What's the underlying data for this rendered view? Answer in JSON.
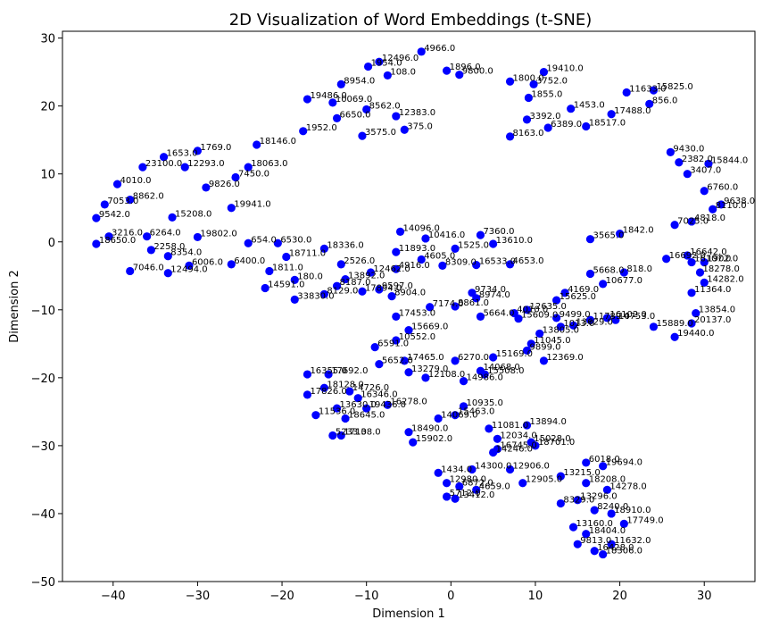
{
  "chart_data": {
    "type": "scatter",
    "title": "2D Visualization of Word Embeddings (t-SNE)",
    "xlabel": "Dimension 1",
    "ylabel": "Dimension 2",
    "xlim": [
      -46,
      36
    ],
    "ylim": [
      -50,
      31
    ],
    "xticks": [
      -40,
      -30,
      -20,
      -10,
      0,
      10,
      20,
      30
    ],
    "yticks": [
      -50,
      -40,
      -30,
      -20,
      -10,
      0,
      10,
      20,
      30
    ],
    "xtick_labels": [
      "−40",
      "−30",
      "−20",
      "−10",
      "0",
      "10",
      "20",
      "30"
    ],
    "ytick_labels": [
      "−50",
      "−40",
      "−30",
      "−20",
      "−10",
      "0",
      "10",
      "20",
      "30"
    ],
    "grid": false,
    "marker_color": "#0000ff",
    "points": [
      {
        "x": -3.5,
        "y": 28.0,
        "label": "4966.0"
      },
      {
        "x": -8.5,
        "y": 26.5,
        "label": "12496.0"
      },
      {
        "x": -9.8,
        "y": 25.8,
        "label": "1954.0"
      },
      {
        "x": -7.5,
        "y": 24.5,
        "label": "108.0"
      },
      {
        "x": -0.5,
        "y": 25.2,
        "label": "1896.0"
      },
      {
        "x": 1.0,
        "y": 24.6,
        "label": "9800.0"
      },
      {
        "x": 11.0,
        "y": 25.0,
        "label": "19410.0"
      },
      {
        "x": 9.8,
        "y": 23.2,
        "label": "3752.0"
      },
      {
        "x": 7.0,
        "y": 23.6,
        "label": "1800.0"
      },
      {
        "x": 9.2,
        "y": 21.2,
        "label": "1855.0"
      },
      {
        "x": 20.8,
        "y": 22.0,
        "label": "11633.0"
      },
      {
        "x": 24.0,
        "y": 22.3,
        "label": "15825.0"
      },
      {
        "x": 23.5,
        "y": 20.3,
        "label": "856.0"
      },
      {
        "x": 14.2,
        "y": 19.6,
        "label": "1453.0"
      },
      {
        "x": 19.0,
        "y": 18.8,
        "label": "17488.0"
      },
      {
        "x": 9.0,
        "y": 18.0,
        "label": "3392.0"
      },
      {
        "x": 11.5,
        "y": 16.8,
        "label": "6389.0"
      },
      {
        "x": 7.0,
        "y": 15.5,
        "label": "8163.0"
      },
      {
        "x": 16.0,
        "y": 17.0,
        "label": "18517.0"
      },
      {
        "x": 26.0,
        "y": 13.2,
        "label": "9430.0"
      },
      {
        "x": 27.0,
        "y": 11.7,
        "label": "2382.0"
      },
      {
        "x": 30.5,
        "y": 11.5,
        "label": "15844.0"
      },
      {
        "x": 28.0,
        "y": 10.0,
        "label": "3407.0"
      },
      {
        "x": 30.0,
        "y": 7.5,
        "label": "6760.0"
      },
      {
        "x": 32.0,
        "y": 5.5,
        "label": "9638.0"
      },
      {
        "x": 31.0,
        "y": 4.8,
        "label": "8110.0"
      },
      {
        "x": 28.5,
        "y": 3.0,
        "label": "4818.0"
      },
      {
        "x": 26.5,
        "y": 2.5,
        "label": "7025.0"
      },
      {
        "x": 20.0,
        "y": 1.2,
        "label": "1842.0"
      },
      {
        "x": 16.5,
        "y": 0.4,
        "label": "3565.0"
      },
      {
        "x": -17.0,
        "y": 21.0,
        "label": "19486.0"
      },
      {
        "x": -13.0,
        "y": 23.2,
        "label": "8954.0"
      },
      {
        "x": -14.0,
        "y": 20.5,
        "label": "10069.0"
      },
      {
        "x": -10.0,
        "y": 19.5,
        "label": "8562.0"
      },
      {
        "x": -13.5,
        "y": 18.2,
        "label": "6650.0"
      },
      {
        "x": -6.5,
        "y": 18.5,
        "label": "12383.0"
      },
      {
        "x": -5.5,
        "y": 16.5,
        "label": "375.0"
      },
      {
        "x": -10.5,
        "y": 15.6,
        "label": "3575.0"
      },
      {
        "x": -17.5,
        "y": 16.3,
        "label": "1952.0"
      },
      {
        "x": -23.0,
        "y": 14.3,
        "label": "18146.0"
      },
      {
        "x": -24.0,
        "y": 11.0,
        "label": "18063.0"
      },
      {
        "x": -30.0,
        "y": 13.4,
        "label": "1769.0"
      },
      {
        "x": -34.0,
        "y": 12.5,
        "label": "1653.0"
      },
      {
        "x": -36.5,
        "y": 11.0,
        "label": "23100.0"
      },
      {
        "x": -31.5,
        "y": 11.0,
        "label": "12293.0"
      },
      {
        "x": -25.5,
        "y": 9.5,
        "label": "7450.0"
      },
      {
        "x": -29.0,
        "y": 8.0,
        "label": "9826.0"
      },
      {
        "x": -39.5,
        "y": 8.5,
        "label": "4010.0"
      },
      {
        "x": -41.0,
        "y": 5.5,
        "label": "7053.0"
      },
      {
        "x": -38.0,
        "y": 6.2,
        "label": "8862.0"
      },
      {
        "x": -26.0,
        "y": 5.0,
        "label": "19941.0"
      },
      {
        "x": -33.0,
        "y": 3.6,
        "label": "15208.0"
      },
      {
        "x": -42.0,
        "y": 3.5,
        "label": "9542.0"
      },
      {
        "x": -42.0,
        "y": -0.3,
        "label": "18650.0"
      },
      {
        "x": -40.5,
        "y": 0.8,
        "label": "3216.0"
      },
      {
        "x": -36.0,
        "y": 0.8,
        "label": "6264.0"
      },
      {
        "x": -30.0,
        "y": 0.7,
        "label": "19802.0"
      },
      {
        "x": -35.5,
        "y": -1.2,
        "label": "2258.0"
      },
      {
        "x": -33.5,
        "y": -2.1,
        "label": "8354.0"
      },
      {
        "x": -31.0,
        "y": -3.5,
        "label": "6006.0"
      },
      {
        "x": -38.0,
        "y": -4.3,
        "label": "7046.0"
      },
      {
        "x": -33.5,
        "y": -4.6,
        "label": "12494.0"
      },
      {
        "x": -24.0,
        "y": -0.2,
        "label": "654.0"
      },
      {
        "x": -20.5,
        "y": -0.2,
        "label": "6530.0"
      },
      {
        "x": -26.0,
        "y": -3.3,
        "label": "6400.0"
      },
      {
        "x": -21.5,
        "y": -4.3,
        "label": "1811.0"
      },
      {
        "x": -19.5,
        "y": -2.2,
        "label": "18711.0"
      },
      {
        "x": -15.0,
        "y": -1.0,
        "label": "18336.0"
      },
      {
        "x": -13.0,
        "y": -3.3,
        "label": "2526.0"
      },
      {
        "x": -12.5,
        "y": -5.5,
        "label": "13892.0"
      },
      {
        "x": -18.5,
        "y": -5.6,
        "label": "180.0"
      },
      {
        "x": -13.5,
        "y": -6.5,
        "label": "8187.0"
      },
      {
        "x": -22.0,
        "y": -6.8,
        "label": "14591.0"
      },
      {
        "x": -18.5,
        "y": -8.5,
        "label": "33830.0"
      },
      {
        "x": -15.0,
        "y": -7.7,
        "label": "8129.0"
      },
      {
        "x": -10.5,
        "y": -7.3,
        "label": "17894.0"
      },
      {
        "x": -8.5,
        "y": -7.0,
        "label": "9597.0"
      },
      {
        "x": -7.0,
        "y": -8.0,
        "label": "8904.0"
      },
      {
        "x": -9.5,
        "y": -4.5,
        "label": "12462.0"
      },
      {
        "x": -6.5,
        "y": -4.0,
        "label": "4916.0"
      },
      {
        "x": -6.5,
        "y": -1.5,
        "label": "11893.0"
      },
      {
        "x": -3.5,
        "y": -2.6,
        "label": "4605.0"
      },
      {
        "x": -1.0,
        "y": -3.5,
        "label": "8309.0"
      },
      {
        "x": 3.0,
        "y": -3.4,
        "label": "16533.0"
      },
      {
        "x": 7.0,
        "y": -3.3,
        "label": "4653.0"
      },
      {
        "x": 5.0,
        "y": -0.3,
        "label": "13610.0"
      },
      {
        "x": 3.5,
        "y": 1.0,
        "label": "7360.0"
      },
      {
        "x": 0.5,
        "y": -1.0,
        "label": "1525.0"
      },
      {
        "x": -6.0,
        "y": 1.5,
        "label": "14096.0"
      },
      {
        "x": -3.0,
        "y": 0.5,
        "label": "10416.0"
      },
      {
        "x": 2.5,
        "y": -7.5,
        "label": "9734.0"
      },
      {
        "x": 3.0,
        "y": -8.3,
        "label": "8974.0"
      },
      {
        "x": 0.5,
        "y": -9.5,
        "label": "8861.0"
      },
      {
        "x": -2.5,
        "y": -9.6,
        "label": "7174.0"
      },
      {
        "x": -6.5,
        "y": -11.0,
        "label": "17453.0"
      },
      {
        "x": 3.5,
        "y": -11.0,
        "label": "5664.0"
      },
      {
        "x": 9.0,
        "y": -10.0,
        "label": "12635.0"
      },
      {
        "x": 7.5,
        "y": -10.5,
        "label": "4010.0"
      },
      {
        "x": 8.0,
        "y": -11.3,
        "label": "15609.0"
      },
      {
        "x": 12.5,
        "y": -11.2,
        "label": "9499.0"
      },
      {
        "x": 13.0,
        "y": -12.5,
        "label": "1013.0"
      },
      {
        "x": 14.5,
        "y": -12.3,
        "label": "13629.0"
      },
      {
        "x": 16.5,
        "y": -11.5,
        "label": "11789.0"
      },
      {
        "x": 18.5,
        "y": -11.2,
        "label": "16102.0"
      },
      {
        "x": 19.5,
        "y": -11.5,
        "label": "14753.0"
      },
      {
        "x": 24.0,
        "y": -12.5,
        "label": "15889.0"
      },
      {
        "x": 26.5,
        "y": -14.0,
        "label": "19440.0"
      },
      {
        "x": 29.0,
        "y": -10.5,
        "label": "13854.0"
      },
      {
        "x": 28.5,
        "y": -12.0,
        "label": "20137.0"
      },
      {
        "x": 28.5,
        "y": -7.5,
        "label": "11364.0"
      },
      {
        "x": 30.0,
        "y": -6.0,
        "label": "14282.0"
      },
      {
        "x": 29.5,
        "y": -4.5,
        "label": "18278.0"
      },
      {
        "x": 30.0,
        "y": -3.0,
        "label": "1902.0"
      },
      {
        "x": 25.5,
        "y": -2.5,
        "label": "16692.0"
      },
      {
        "x": 28.0,
        "y": -2.0,
        "label": "16642.0"
      },
      {
        "x": 28.5,
        "y": -3.0,
        "label": "16107.0"
      },
      {
        "x": 20.5,
        "y": -4.5,
        "label": "818.0"
      },
      {
        "x": 18.0,
        "y": -6.2,
        "label": "10677.0"
      },
      {
        "x": 16.5,
        "y": -4.7,
        "label": "5668.0"
      },
      {
        "x": 13.5,
        "y": -7.5,
        "label": "4169.0"
      },
      {
        "x": 12.5,
        "y": -8.6,
        "label": "15625.0"
      },
      {
        "x": 10.5,
        "y": -13.5,
        "label": "13805.0"
      },
      {
        "x": 9.5,
        "y": -15.0,
        "label": "11045.0"
      },
      {
        "x": 9.0,
        "y": -16.0,
        "label": "9899.0"
      },
      {
        "x": 11.0,
        "y": -17.5,
        "label": "12369.0"
      },
      {
        "x": 5.0,
        "y": -17.0,
        "label": "15169.0"
      },
      {
        "x": 4.0,
        "y": -19.5,
        "label": "15508.0"
      },
      {
        "x": 3.5,
        "y": -19.0,
        "label": "14068.0"
      },
      {
        "x": 0.5,
        "y": -17.5,
        "label": "6270.0"
      },
      {
        "x": -5.0,
        "y": -13.0,
        "label": "15669.0"
      },
      {
        "x": -6.5,
        "y": -14.5,
        "label": "10552.0"
      },
      {
        "x": -9.0,
        "y": -15.5,
        "label": "6591.0"
      },
      {
        "x": -5.5,
        "y": -17.5,
        "label": "17465.0"
      },
      {
        "x": -8.5,
        "y": -18.0,
        "label": "5652.0"
      },
      {
        "x": -5.0,
        "y": -19.2,
        "label": "13279.0"
      },
      {
        "x": -3.0,
        "y": -20.0,
        "label": "12108.0"
      },
      {
        "x": 1.5,
        "y": -20.5,
        "label": "14986.0"
      },
      {
        "x": -17.0,
        "y": -19.5,
        "label": "16355.0"
      },
      {
        "x": -14.5,
        "y": -19.5,
        "label": "17692.0"
      },
      {
        "x": -15.0,
        "y": -21.5,
        "label": "18128.0"
      },
      {
        "x": -17.0,
        "y": -22.5,
        "label": "17826.0"
      },
      {
        "x": -12.0,
        "y": -22.0,
        "label": "14726.0"
      },
      {
        "x": -11.0,
        "y": -23.0,
        "label": "16346.0"
      },
      {
        "x": -10.0,
        "y": -24.5,
        "label": "19436.0"
      },
      {
        "x": -7.5,
        "y": -24.0,
        "label": "16278.0"
      },
      {
        "x": -13.5,
        "y": -24.5,
        "label": "13630.0"
      },
      {
        "x": -12.5,
        "y": -26.0,
        "label": "18645.0"
      },
      {
        "x": -16.0,
        "y": -25.5,
        "label": "11536.0"
      },
      {
        "x": -14.0,
        "y": -28.5,
        "label": "5233.0"
      },
      {
        "x": -13.0,
        "y": -28.5,
        "label": "17138.0"
      },
      {
        "x": -4.5,
        "y": -29.5,
        "label": "15902.0"
      },
      {
        "x": -5.0,
        "y": -28.0,
        "label": "18490.0"
      },
      {
        "x": -1.5,
        "y": -26.0,
        "label": "14069.0"
      },
      {
        "x": 1.5,
        "y": -24.2,
        "label": "10935.0"
      },
      {
        "x": 0.5,
        "y": -25.5,
        "label": "15463.0"
      },
      {
        "x": 4.5,
        "y": -27.5,
        "label": "11081.0"
      },
      {
        "x": 5.5,
        "y": -29.0,
        "label": "12034.0"
      },
      {
        "x": 9.0,
        "y": -27.0,
        "label": "13894.0"
      },
      {
        "x": 9.5,
        "y": -29.5,
        "label": "15028.0"
      },
      {
        "x": 10.0,
        "y": -30.0,
        "label": "18701.0"
      },
      {
        "x": 5.5,
        "y": -30.5,
        "label": "16745.0"
      },
      {
        "x": 5.0,
        "y": -31.0,
        "label": "14246.0"
      },
      {
        "x": 7.0,
        "y": -33.5,
        "label": "12906.0"
      },
      {
        "x": 2.5,
        "y": -33.5,
        "label": "14300.0"
      },
      {
        "x": -1.5,
        "y": -34.0,
        "label": "1434.0"
      },
      {
        "x": -0.5,
        "y": -35.5,
        "label": "12980.0"
      },
      {
        "x": 1.0,
        "y": -36.0,
        "label": "6872.0"
      },
      {
        "x": 3.0,
        "y": -36.5,
        "label": "4659.0"
      },
      {
        "x": 8.5,
        "y": -35.5,
        "label": "12905.0"
      },
      {
        "x": -0.5,
        "y": -37.5,
        "label": "5712.0"
      },
      {
        "x": 0.5,
        "y": -37.8,
        "label": "13412.0"
      },
      {
        "x": 16.0,
        "y": -32.5,
        "label": "6018.0"
      },
      {
        "x": 18.0,
        "y": -33.0,
        "label": "19694.0"
      },
      {
        "x": 13.0,
        "y": -34.5,
        "label": "13215.0"
      },
      {
        "x": 16.0,
        "y": -35.5,
        "label": "18208.0"
      },
      {
        "x": 18.5,
        "y": -36.5,
        "label": "14278.0"
      },
      {
        "x": 13.0,
        "y": -38.5,
        "label": "8329.0"
      },
      {
        "x": 15.0,
        "y": -38.0,
        "label": "13296.0"
      },
      {
        "x": 17.0,
        "y": -39.5,
        "label": "8240.0"
      },
      {
        "x": 19.0,
        "y": -40.0,
        "label": "18910.0"
      },
      {
        "x": 20.5,
        "y": -41.5,
        "label": "17749.0"
      },
      {
        "x": 14.5,
        "y": -42.0,
        "label": "13160.0"
      },
      {
        "x": 16.0,
        "y": -43.0,
        "label": "18404.0"
      },
      {
        "x": 15.0,
        "y": -44.5,
        "label": "9813.0"
      },
      {
        "x": 17.0,
        "y": -45.5,
        "label": "16428.0"
      },
      {
        "x": 19.0,
        "y": -44.5,
        "label": "11632.0"
      },
      {
        "x": 18.0,
        "y": -46.0,
        "label": "18306.0"
      }
    ]
  }
}
